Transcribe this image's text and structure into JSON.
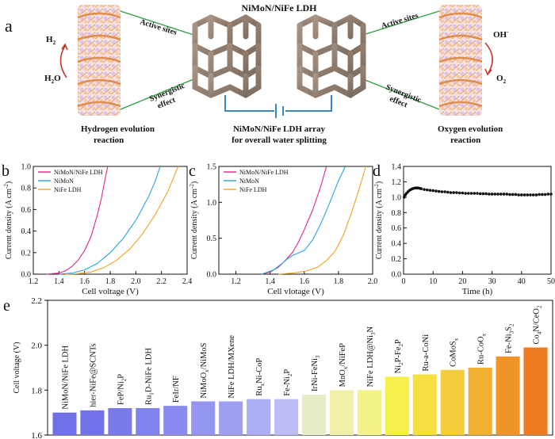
{
  "panel_a": {
    "panel_letter": "a",
    "center_title": "NiMoN/NiFe LDH",
    "left_active_sites": "Active sites",
    "right_active_sites": "Active sites",
    "left_synergistic": [
      "Synergistic",
      "effect"
    ],
    "right_synergistic": [
      "Synergistic",
      "effect"
    ],
    "her_products": {
      "top": "H",
      "top_sub": "2",
      "bottom": "H",
      "bottom_sub": "2",
      "bottom_tail": "O"
    },
    "oer_products": {
      "top": "OH",
      "top_sup": "-",
      "bottom": "O",
      "bottom_sub": "2"
    },
    "her_label": [
      "Hydrogen evolution",
      "reaction"
    ],
    "oer_label": [
      "Oxygen evolution",
      "reaction"
    ],
    "array_label": [
      "NiMoN/NiFe LDH array",
      "for overall water splitting"
    ]
  },
  "colors": {
    "nimon_nife": "#e0278c",
    "nimon": "#27a6e0",
    "nife": "#f0a320",
    "stability": "#111111"
  },
  "chart_data": [
    {
      "id": "b",
      "panel_letter": "b",
      "type": "line",
      "xlabel": "Cell voltage (V)",
      "ylabel": "Current density (A cm",
      "ylabel_sup": "-2",
      "ylabel_tail": ")",
      "xlim": [
        1.2,
        2.4
      ],
      "ylim": [
        0,
        1.0
      ],
      "xticks": [
        "1.2",
        "1.4",
        "1.6",
        "1.8",
        "2.0",
        "2.2",
        "2.4"
      ],
      "xtick_values": [
        1.2,
        1.4,
        1.6,
        1.8,
        2.0,
        2.2,
        2.4
      ],
      "yticks": [
        "0.0",
        "0.2",
        "0.4",
        "0.6",
        "0.8",
        "1.0"
      ],
      "ytick_values": [
        0,
        0.2,
        0.4,
        0.6,
        0.8,
        1.0
      ],
      "legend": [
        "NiMoN/NiFe LDH",
        "NiMoN",
        "NiFe LDH"
      ],
      "series": [
        {
          "name": "NiMoN/NiFe LDH",
          "x": [
            1.3,
            1.4,
            1.45,
            1.5,
            1.55,
            1.6,
            1.65,
            1.7,
            1.73,
            1.76,
            1.78
          ],
          "y": [
            0,
            0.01,
            0.03,
            0.07,
            0.13,
            0.22,
            0.35,
            0.55,
            0.7,
            0.88,
            1.0
          ]
        },
        {
          "name": "NiMoN",
          "x": [
            1.4,
            1.5,
            1.6,
            1.7,
            1.8,
            1.9,
            2.0,
            2.1,
            2.15,
            2.19
          ],
          "y": [
            0,
            0.01,
            0.04,
            0.1,
            0.2,
            0.33,
            0.5,
            0.72,
            0.86,
            1.0
          ]
        },
        {
          "name": "NiFe LDH",
          "x": [
            1.45,
            1.55,
            1.65,
            1.75,
            1.85,
            1.95,
            2.05,
            2.15,
            2.25,
            2.33
          ],
          "y": [
            0,
            0.005,
            0.02,
            0.06,
            0.13,
            0.23,
            0.37,
            0.55,
            0.77,
            1.0
          ]
        }
      ]
    },
    {
      "id": "c",
      "panel_letter": "c",
      "type": "line",
      "xlabel": "Cell vlotage (V)",
      "ylabel": "Current density (A cm",
      "ylabel_sup": "-2",
      "ylabel_tail": ")",
      "xlim": [
        1.1,
        2.0
      ],
      "ylim": [
        0,
        1.5
      ],
      "xticks": [
        "1.2",
        "1.4",
        "1.6",
        "1.8",
        "2.0"
      ],
      "xtick_values": [
        1.2,
        1.4,
        1.6,
        1.8,
        2.0
      ],
      "yticks": [
        "0.0",
        "0.5",
        "1.0",
        "1.5"
      ],
      "ytick_values": [
        0,
        0.5,
        1.0,
        1.5
      ],
      "legend": [
        "NiMoN/NiFe LDH",
        "NiMoN",
        "NiFe LDH"
      ],
      "series": [
        {
          "name": "NiMoN/NiFe LDH",
          "x": [
            1.35,
            1.4,
            1.45,
            1.48,
            1.5,
            1.53,
            1.56,
            1.6,
            1.65,
            1.7,
            1.73
          ],
          "y": [
            0,
            0.03,
            0.1,
            0.17,
            0.22,
            0.3,
            0.42,
            0.62,
            0.9,
            1.25,
            1.5
          ]
        },
        {
          "name": "NiMoN",
          "x": [
            1.35,
            1.42,
            1.47,
            1.5,
            1.53,
            1.56,
            1.6,
            1.65,
            1.7,
            1.75,
            1.8,
            1.84
          ],
          "y": [
            0,
            0.06,
            0.15,
            0.21,
            0.26,
            0.29,
            0.33,
            0.48,
            0.72,
            1.0,
            1.3,
            1.5
          ]
        },
        {
          "name": "NiFe LDH",
          "x": [
            1.45,
            1.55,
            1.62,
            1.68,
            1.73,
            1.78,
            1.83,
            1.88,
            1.92,
            1.96
          ],
          "y": [
            0,
            0.02,
            0.05,
            0.1,
            0.19,
            0.32,
            0.55,
            0.88,
            1.18,
            1.5
          ]
        }
      ]
    },
    {
      "id": "d",
      "panel_letter": "d",
      "type": "scatter",
      "xlabel": "Time (h)",
      "ylabel": "Current density (A cm",
      "ylabel_sup": "-2",
      "ylabel_tail": ")",
      "xlim": [
        0,
        50
      ],
      "ylim": [
        0.0,
        1.4
      ],
      "xticks": [
        "0",
        "10",
        "20",
        "30",
        "40",
        "50"
      ],
      "xtick_values": [
        0,
        10,
        20,
        30,
        40,
        50
      ],
      "yticks": [
        "0.0",
        "0.2",
        "0.4",
        "0.6",
        "0.8",
        "1.0",
        "1.2",
        "1.4"
      ],
      "ytick_values": [
        0,
        0.2,
        0.4,
        0.6,
        0.8,
        1.0,
        1.2,
        1.4
      ],
      "series": [
        {
          "name": "stability",
          "x": [
            0.2,
            0.6,
            1.0,
            1.5,
            2,
            2.5,
            3,
            3.5,
            4,
            4.5,
            5,
            5.5,
            6,
            7,
            8,
            9,
            10,
            11,
            12,
            13,
            14,
            15,
            16,
            17,
            18,
            19,
            20,
            21,
            22,
            23,
            24,
            25,
            26,
            27,
            28,
            29,
            30,
            31,
            32,
            33,
            34,
            35,
            36,
            37,
            38,
            39,
            40,
            41,
            42,
            43,
            44,
            45,
            46,
            47,
            48,
            49,
            50
          ],
          "y": [
            1.0,
            1.03,
            1.05,
            1.07,
            1.09,
            1.1,
            1.11,
            1.115,
            1.12,
            1.12,
            1.12,
            1.115,
            1.11,
            1.1,
            1.095,
            1.09,
            1.085,
            1.08,
            1.075,
            1.07,
            1.07,
            1.065,
            1.06,
            1.06,
            1.06,
            1.055,
            1.055,
            1.05,
            1.05,
            1.05,
            1.05,
            1.05,
            1.045,
            1.045,
            1.045,
            1.04,
            1.04,
            1.04,
            1.04,
            1.04,
            1.04,
            1.04,
            1.035,
            1.035,
            1.035,
            1.03,
            1.03,
            1.03,
            1.03,
            1.03,
            1.03,
            1.03,
            1.035,
            1.035,
            1.035,
            1.04,
            1.04
          ]
        }
      ]
    },
    {
      "id": "e",
      "panel_letter": "e",
      "type": "bar",
      "ylabel": "Cell voltage (V)",
      "ylim": [
        1.6,
        2.2
      ],
      "yticks": [
        "1.6",
        "1.8",
        "2.0",
        "2.2"
      ],
      "ytick_values": [
        1.6,
        1.8,
        2.0,
        2.2
      ],
      "categories": [
        {
          "text": "NiMoN/NiFe LDH"
        },
        {
          "text": "hier-NiFe@SCNTs"
        },
        {
          "text": "FeP/Ni",
          "sub": "2",
          "tail": "P"
        },
        {
          "text": "Ru",
          "sub": "1",
          "tail": "D-NiFe LDH"
        },
        {
          "text": "FeIr/NF"
        },
        {
          "text": "NiMoO",
          "sub": "x",
          "tail": "/NiMoS"
        },
        {
          "text": "NiFe LDH/MXene"
        },
        {
          "text": "Ru",
          "sub": "x",
          "tail": "Ni-CoP"
        },
        {
          "text": "Fe-Ni",
          "sub": "2",
          "tail": "P"
        },
        {
          "text": "IrNi-FeNi",
          "sub": "3"
        },
        {
          "text": "MnO",
          "sub": "x",
          "tail": "/NiFeP"
        },
        {
          "text": "NiFe LDH@Ni",
          "sub": "3",
          "tail": "N"
        },
        {
          "text": "Ni",
          "sub": "2",
          "tail": "P-Fe",
          "sub2": "2",
          "tail2": "P"
        },
        {
          "text": "Ru-a-CoNi"
        },
        {
          "text": "CoMoS",
          "sub": "x"
        },
        {
          "text": "Ru-CoO",
          "sub": "x"
        },
        {
          "text": "Fe-Ni",
          "sub": "3",
          "tail": "S",
          "sub2": "2"
        },
        {
          "text": "Co",
          "sub": "4",
          "tail": "N/CeO",
          "sub2": "2"
        }
      ],
      "values": [
        1.7,
        1.71,
        1.72,
        1.72,
        1.73,
        1.75,
        1.75,
        1.76,
        1.76,
        1.78,
        1.8,
        1.8,
        1.86,
        1.87,
        1.89,
        1.9,
        1.95,
        1.99
      ],
      "bar_colors": [
        "#6f6fe8",
        "#7272ea",
        "#7a7aec",
        "#8282ee",
        "#8a8af0",
        "#9595f2",
        "#a0a0f3",
        "#aeaef5",
        "#bcbcf7",
        "#e8ecc8",
        "#f0f0a8",
        "#f3f38a",
        "#f5f04a",
        "#f5e040",
        "#f4cc3c",
        "#f2b030",
        "#f09428",
        "#ee7a22"
      ]
    }
  ]
}
